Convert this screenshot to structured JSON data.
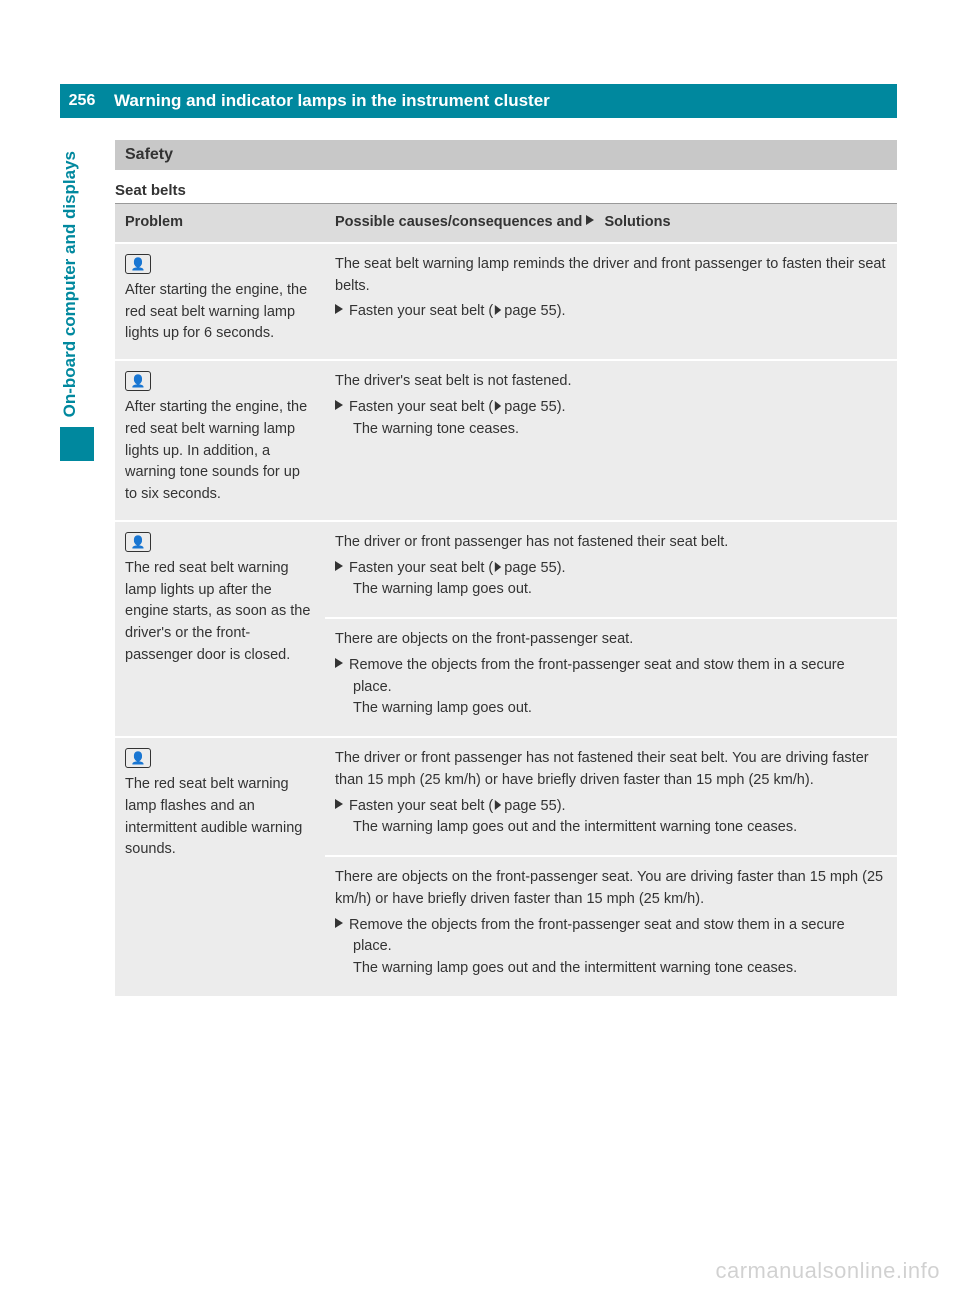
{
  "page": {
    "number": "256",
    "title": "Warning and indicator lamps in the instrument cluster",
    "side_tab": "On-board computer and displays"
  },
  "section": {
    "h1": "Safety",
    "h2": "Seat belts"
  },
  "table": {
    "head_problem": "Problem",
    "head_solutions_prefix": "Possible causes/consequences and ",
    "head_solutions_suffix": " Solutions",
    "rows": [
      {
        "icon": "👤",
        "problem": "After starting the engine, the red seat belt warning lamp lights up for 6 seconds.",
        "blocks": [
          {
            "text": "The seat belt warning lamp reminds the driver and front passenger to fasten their seat belts.",
            "actions": [
              {
                "label": "Fasten your seat belt (",
                "ref": "page 55",
                "after": ")."
              }
            ]
          }
        ]
      },
      {
        "icon": "👤",
        "problem": "After starting the engine, the red seat belt warning lamp lights up. In addition, a warning tone sounds for up to six seconds.",
        "blocks": [
          {
            "text": "The driver's seat belt is not fastened.",
            "actions": [
              {
                "label": "Fasten your seat belt (",
                "ref": "page 55",
                "after": ").",
                "note": "The warning tone ceases."
              }
            ]
          }
        ]
      },
      {
        "icon": "👤",
        "problem": "The red seat belt warning lamp lights up after the engine starts, as soon as the driver's or the front-passenger door is closed.",
        "blocks": [
          {
            "text": "The driver or front passenger has not fastened their seat belt.",
            "actions": [
              {
                "label": "Fasten your seat belt (",
                "ref": "page 55",
                "after": ").",
                "note": "The warning lamp goes out."
              }
            ]
          },
          {
            "text": "There are objects on the front-passenger seat.",
            "actions": [
              {
                "label": "Remove the objects from the front-passenger seat and stow them in a secure place.",
                "note": "The warning lamp goes out."
              }
            ]
          }
        ]
      },
      {
        "icon": "👤",
        "problem": "The red seat belt warning lamp flashes and an intermittent audible warning sounds.",
        "blocks": [
          {
            "text": "The driver or front passenger has not fastened their seat belt. You are driving faster than 15 mph (25 km/h) or have briefly driven faster than 15 mph (25 km/h).",
            "actions": [
              {
                "label": "Fasten your seat belt (",
                "ref": "page 55",
                "after": ").",
                "note": "The warning lamp goes out and the intermittent warning tone ceases."
              }
            ]
          },
          {
            "text": "There are objects on the front-passenger seat. You are driving faster than 15 mph (25 km/h) or have briefly driven faster than 15 mph (25 km/h).",
            "actions": [
              {
                "label": "Remove the objects from the front-passenger seat and stow them in a secure place.",
                "note": "The warning lamp goes out and the intermittent warning tone ceases."
              }
            ]
          }
        ]
      }
    ]
  },
  "watermark": "carmanualsonline.info"
}
